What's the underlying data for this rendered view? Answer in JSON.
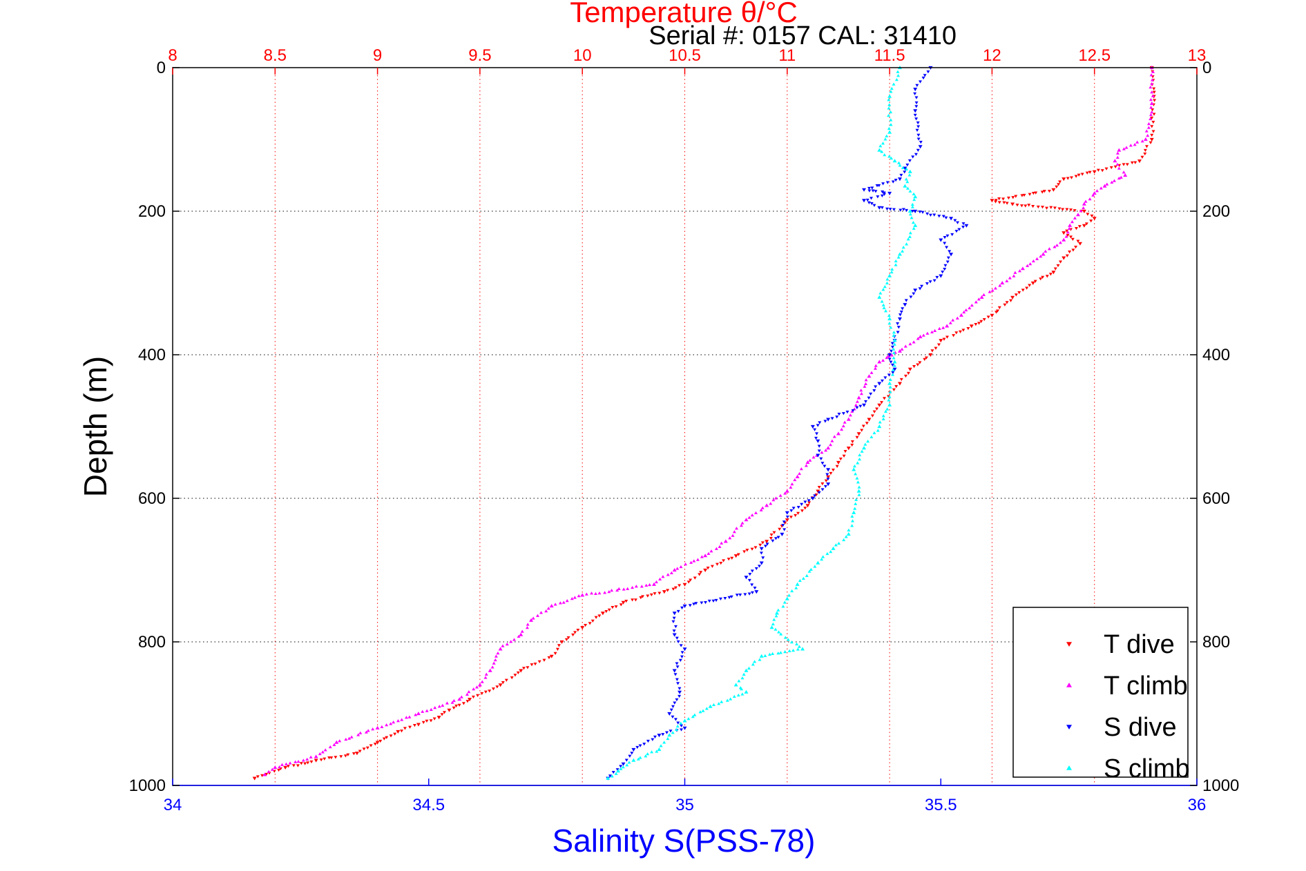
{
  "header": {
    "top_title": "Temperature θ/°C",
    "serial_label": "Serial #: 0157  CAL: 31410"
  },
  "colors": {
    "T dive": "#ff0000",
    "T climb": "#ff00ff",
    "S dive": "#0000ff",
    "S climb": "#00ffff",
    "temperature_axis": "#ff0000",
    "salinity_axis": "#0000ff",
    "depth_grid": "#000000"
  },
  "chart_data": {
    "type": "scatter",
    "title": "Temperature θ/°C",
    "ylabel": "Depth (m)",
    "xlabel": "Salinity S(PSS-78)",
    "ylim": [
      0,
      1000
    ],
    "y_reversed": true,
    "y_ticks": [
      "0",
      "200",
      "400",
      "600",
      "800",
      "1000"
    ],
    "temperature_axis": {
      "position": "top",
      "label": "Temperature θ/°C",
      "lim": [
        8,
        13
      ],
      "ticks": [
        "8",
        "8.5",
        "9",
        "9.5",
        "10",
        "10.5",
        "11",
        "11.5",
        "12",
        "12.5",
        "13"
      ]
    },
    "salinity_axis": {
      "position": "bottom",
      "label": "Salinity S(PSS-78)",
      "lim": [
        34,
        36
      ],
      "ticks": [
        "34",
        "34.5",
        "35",
        "35.5",
        "36"
      ]
    },
    "grid": true,
    "legend_position": "bottom-right",
    "series": [
      {
        "name": "T dive",
        "axis": "temperature",
        "marker": "triangle-down",
        "points": [
          [
            12.78,
            0
          ],
          [
            12.79,
            40
          ],
          [
            12.78,
            100
          ],
          [
            12.72,
            130
          ],
          [
            12.5,
            145
          ],
          [
            12.35,
            155
          ],
          [
            12.3,
            170
          ],
          [
            12.0,
            185
          ],
          [
            12.1,
            190
          ],
          [
            12.45,
            200
          ],
          [
            12.5,
            210
          ],
          [
            12.45,
            220
          ],
          [
            12.35,
            230
          ],
          [
            12.43,
            245
          ],
          [
            12.35,
            265
          ],
          [
            12.3,
            285
          ],
          [
            12.2,
            300
          ],
          [
            12.1,
            320
          ],
          [
            12.0,
            345
          ],
          [
            11.9,
            360
          ],
          [
            11.75,
            380
          ],
          [
            11.7,
            400
          ],
          [
            11.6,
            420
          ],
          [
            11.55,
            440
          ],
          [
            11.45,
            470
          ],
          [
            11.4,
            490
          ],
          [
            11.35,
            510
          ],
          [
            11.3,
            530
          ],
          [
            11.25,
            550
          ],
          [
            11.2,
            570
          ],
          [
            11.15,
            590
          ],
          [
            11.1,
            610
          ],
          [
            11.0,
            630
          ],
          [
            10.9,
            660
          ],
          [
            10.75,
            680
          ],
          [
            10.6,
            700
          ],
          [
            10.5,
            720
          ],
          [
            10.4,
            730
          ],
          [
            10.2,
            745
          ],
          [
            10.1,
            760
          ],
          [
            10.0,
            780
          ],
          [
            9.9,
            800
          ],
          [
            9.85,
            820
          ],
          [
            9.7,
            840
          ],
          [
            9.6,
            860
          ],
          [
            9.45,
            880
          ],
          [
            9.35,
            895
          ],
          [
            9.3,
            905
          ],
          [
            9.2,
            915
          ],
          [
            9.1,
            925
          ],
          [
            9.0,
            940
          ],
          [
            8.9,
            955
          ],
          [
            8.7,
            965
          ],
          [
            8.55,
            975
          ],
          [
            8.4,
            990
          ]
        ]
      },
      {
        "name": "T climb",
        "axis": "temperature",
        "marker": "triangle-up",
        "points": [
          [
            12.78,
            0
          ],
          [
            12.78,
            50
          ],
          [
            12.75,
            100
          ],
          [
            12.62,
            115
          ],
          [
            12.6,
            130
          ],
          [
            12.65,
            150
          ],
          [
            12.55,
            165
          ],
          [
            12.5,
            175
          ],
          [
            12.45,
            190
          ],
          [
            12.42,
            205
          ],
          [
            12.38,
            220
          ],
          [
            12.35,
            240
          ],
          [
            12.25,
            260
          ],
          [
            12.15,
            280
          ],
          [
            12.05,
            300
          ],
          [
            11.95,
            320
          ],
          [
            11.85,
            345
          ],
          [
            11.78,
            360
          ],
          [
            11.65,
            375
          ],
          [
            11.55,
            395
          ],
          [
            11.45,
            410
          ],
          [
            11.4,
            430
          ],
          [
            11.35,
            460
          ],
          [
            11.3,
            490
          ],
          [
            11.25,
            510
          ],
          [
            11.2,
            530
          ],
          [
            11.1,
            550
          ],
          [
            11.05,
            570
          ],
          [
            11.0,
            590
          ],
          [
            10.9,
            610
          ],
          [
            10.8,
            630
          ],
          [
            10.7,
            660
          ],
          [
            10.6,
            680
          ],
          [
            10.45,
            700
          ],
          [
            10.35,
            720
          ],
          [
            10.0,
            735
          ],
          [
            9.85,
            750
          ],
          [
            9.75,
            770
          ],
          [
            9.7,
            790
          ],
          [
            9.6,
            810
          ],
          [
            9.55,
            840
          ],
          [
            9.5,
            860
          ],
          [
            9.4,
            880
          ],
          [
            9.2,
            900
          ],
          [
            9.0,
            920
          ],
          [
            8.8,
            940
          ],
          [
            8.7,
            960
          ],
          [
            8.5,
            975
          ],
          [
            8.45,
            985
          ]
        ]
      },
      {
        "name": "S dive",
        "axis": "salinity",
        "marker": "triangle-down",
        "points": [
          [
            35.48,
            0
          ],
          [
            35.45,
            30
          ],
          [
            35.45,
            60
          ],
          [
            35.46,
            110
          ],
          [
            35.43,
            140
          ],
          [
            35.42,
            155
          ],
          [
            35.35,
            170
          ],
          [
            35.4,
            175
          ],
          [
            35.35,
            185
          ],
          [
            35.38,
            195
          ],
          [
            35.45,
            200
          ],
          [
            35.52,
            210
          ],
          [
            35.55,
            220
          ],
          [
            35.5,
            240
          ],
          [
            35.52,
            260
          ],
          [
            35.5,
            290
          ],
          [
            35.45,
            310
          ],
          [
            35.43,
            330
          ],
          [
            35.42,
            350
          ],
          [
            35.41,
            380
          ],
          [
            35.4,
            400
          ],
          [
            35.41,
            420
          ],
          [
            35.38,
            440
          ],
          [
            35.35,
            470
          ],
          [
            35.28,
            490
          ],
          [
            35.25,
            500
          ],
          [
            35.26,
            520
          ],
          [
            35.26,
            540
          ],
          [
            35.28,
            560
          ],
          [
            35.28,
            580
          ],
          [
            35.25,
            600
          ],
          [
            35.2,
            620
          ],
          [
            35.19,
            650
          ],
          [
            35.15,
            670
          ],
          [
            35.15,
            690
          ],
          [
            35.12,
            710
          ],
          [
            35.14,
            730
          ],
          [
            35.0,
            750
          ],
          [
            34.98,
            760
          ],
          [
            34.98,
            790
          ],
          [
            35.0,
            810
          ],
          [
            34.98,
            840
          ],
          [
            34.99,
            870
          ],
          [
            34.97,
            900
          ],
          [
            35.0,
            920
          ],
          [
            34.95,
            930
          ],
          [
            34.9,
            950
          ],
          [
            34.88,
            970
          ],
          [
            34.85,
            990
          ]
        ]
      },
      {
        "name": "S climb",
        "axis": "salinity",
        "marker": "triangle-up",
        "points": [
          [
            35.42,
            0
          ],
          [
            35.4,
            40
          ],
          [
            35.4,
            90
          ],
          [
            35.38,
            115
          ],
          [
            35.41,
            130
          ],
          [
            35.44,
            145
          ],
          [
            35.43,
            165
          ],
          [
            35.45,
            180
          ],
          [
            35.44,
            200
          ],
          [
            35.45,
            220
          ],
          [
            35.42,
            260
          ],
          [
            35.4,
            290
          ],
          [
            35.38,
            320
          ],
          [
            35.4,
            350
          ],
          [
            35.41,
            380
          ],
          [
            35.41,
            410
          ],
          [
            35.4,
            440
          ],
          [
            35.4,
            470
          ],
          [
            35.38,
            500
          ],
          [
            35.35,
            530
          ],
          [
            35.33,
            560
          ],
          [
            35.34,
            590
          ],
          [
            35.33,
            620
          ],
          [
            35.32,
            650
          ],
          [
            35.29,
            670
          ],
          [
            35.26,
            690
          ],
          [
            35.22,
            720
          ],
          [
            35.2,
            740
          ],
          [
            35.18,
            760
          ],
          [
            35.17,
            780
          ],
          [
            35.23,
            810
          ],
          [
            35.15,
            820
          ],
          [
            35.12,
            840
          ],
          [
            35.1,
            860
          ],
          [
            35.12,
            870
          ],
          [
            35.05,
            890
          ],
          [
            35.0,
            910
          ],
          [
            34.97,
            930
          ],
          [
            34.95,
            950
          ],
          [
            34.9,
            965
          ],
          [
            34.87,
            980
          ],
          [
            34.85,
            990
          ]
        ]
      }
    ]
  }
}
